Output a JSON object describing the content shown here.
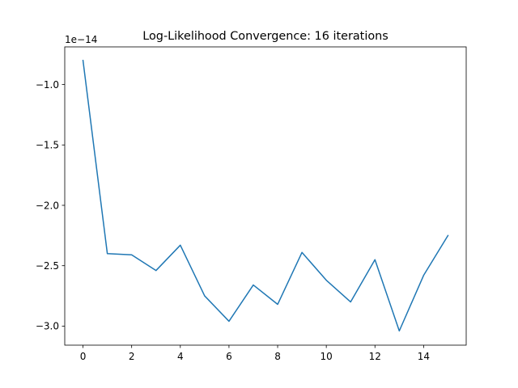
{
  "chart_data": {
    "type": "line",
    "title": "Log-Likelihood Convergence: 16 iterations",
    "xlabel": "",
    "ylabel": "",
    "y_offset_label": "1e−14",
    "y_scale_exponent": -14,
    "x": [
      0,
      1,
      2,
      3,
      4,
      5,
      6,
      7,
      8,
      9,
      10,
      11,
      12,
      13,
      14,
      15
    ],
    "series": [
      {
        "values": [
          -0.8,
          -2.4,
          -2.41,
          -2.54,
          -2.33,
          -2.75,
          -2.96,
          -2.66,
          -2.82,
          -2.39,
          -2.62,
          -2.8,
          -2.45,
          -3.04,
          -2.58,
          -2.25
        ]
      }
    ],
    "xlim": [
      -0.75,
      15.75
    ],
    "ylim": [
      -3.158,
      -0.688
    ],
    "xticks": [
      0,
      2,
      4,
      6,
      8,
      10,
      12,
      14
    ],
    "xtick_labels": [
      "0",
      "2",
      "4",
      "6",
      "8",
      "10",
      "12",
      "14"
    ],
    "yticks": [
      -3.0,
      -2.5,
      -2.0,
      -1.5,
      -1.0
    ],
    "ytick_labels": [
      "−3.0",
      "−2.5",
      "−2.0",
      "−1.5",
      "−1.0"
    ],
    "grid": false,
    "line_color": "#1f77b4"
  }
}
